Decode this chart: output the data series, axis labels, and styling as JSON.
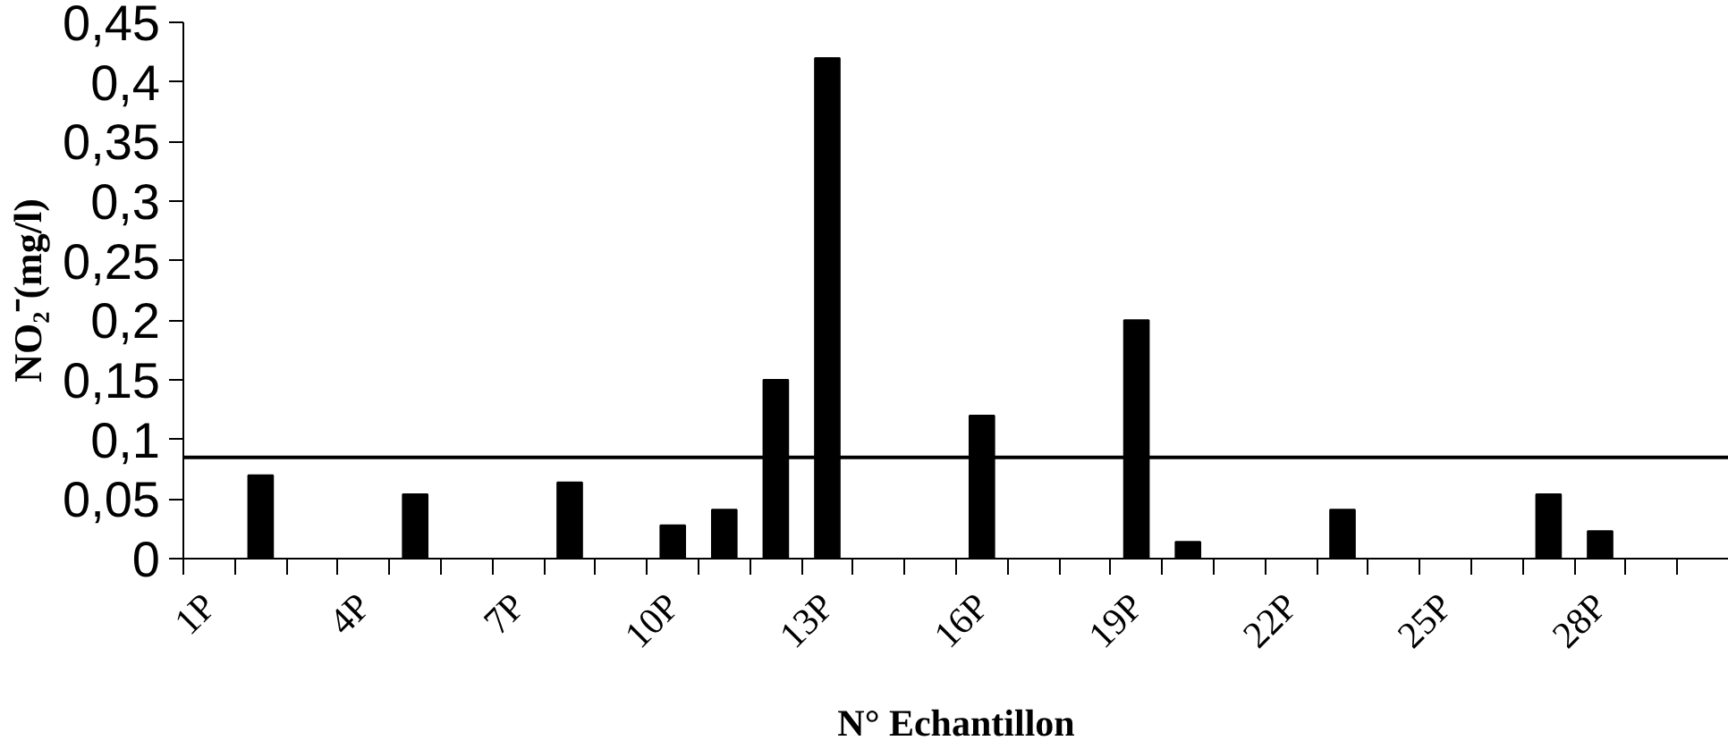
{
  "chart_data": {
    "type": "bar",
    "xlabel": "N° Echantillon",
    "ylabel": "NO₂⁻(mg/l)",
    "categories": [
      "1P",
      null,
      null,
      "4P",
      null,
      null,
      "7P",
      null,
      null,
      "10P",
      null,
      null,
      "13P",
      null,
      null,
      "16P",
      null,
      null,
      "19P",
      null,
      null,
      "22P",
      null,
      null,
      "25P",
      null,
      null,
      "28P",
      null,
      null
    ],
    "values": [
      null,
      0.07,
      null,
      null,
      0.054,
      null,
      null,
      0.064,
      null,
      0.028,
      0.041,
      0.15,
      0.42,
      null,
      null,
      0.12,
      null,
      null,
      0.2,
      0.014,
      null,
      null,
      0.041,
      null,
      null,
      null,
      0.054,
      0.023,
      null,
      null
    ],
    "color": "#000000",
    "ylim": [
      0,
      0.45
    ],
    "yticks": [
      {
        "value": 0,
        "label": "0"
      },
      {
        "value": 0.05,
        "label": "0,05"
      },
      {
        "value": 0.1,
        "label": "0,1"
      },
      {
        "value": 0.15,
        "label": "0,15"
      },
      {
        "value": 0.2,
        "label": "0,2"
      },
      {
        "value": 0.25,
        "label": "0,25"
      },
      {
        "value": 0.3,
        "label": "0,3"
      },
      {
        "value": 0.35,
        "label": "0,35"
      },
      {
        "value": 0.4,
        "label": "0,4"
      },
      {
        "value": 0.45,
        "label": "0,45"
      }
    ],
    "ref_lines": [
      {
        "axis": "y",
        "value": 0.085,
        "color": "#000000"
      }
    ],
    "grid": false
  }
}
